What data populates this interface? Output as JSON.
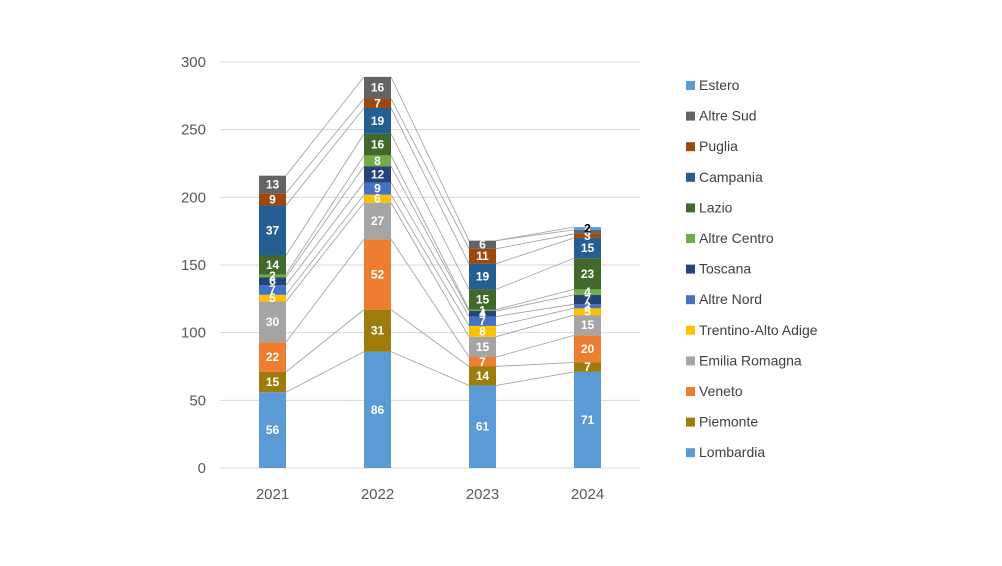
{
  "chart_data": {
    "type": "bar",
    "stacked": true,
    "categories": [
      "2021",
      "2022",
      "2023",
      "2024"
    ],
    "ylim": [
      0,
      300
    ],
    "y_ticks": [
      0,
      50,
      100,
      150,
      200,
      250,
      300
    ],
    "grid": true,
    "legend_position": "right",
    "series_lines": true,
    "series": [
      {
        "name": "Lombardia",
        "color": "#5B9BD5",
        "label_color": "#ffffff",
        "values": [
          56,
          86,
          61,
          71
        ]
      },
      {
        "name": "Piemonte",
        "color": "#9E7C0C",
        "label_color": "#ffffff",
        "values": [
          15,
          31,
          14,
          7
        ]
      },
      {
        "name": "Veneto",
        "color": "#ED7D31",
        "label_color": "#ffffff",
        "values": [
          22,
          52,
          7,
          20
        ]
      },
      {
        "name": "Emilia Romagna",
        "color": "#A5A5A5",
        "label_color": "#ffffff",
        "values": [
          30,
          27,
          15,
          15
        ]
      },
      {
        "name": "Trentino-Alto Adige",
        "color": "#FFC000",
        "label_color": "#ffffff",
        "values": [
          5,
          6,
          8,
          5
        ]
      },
      {
        "name": "Altre Nord",
        "color": "#4472C4",
        "label_color": "#ffffff",
        "values": [
          7,
          9,
          7,
          3
        ]
      },
      {
        "name": "Toscana",
        "color": "#264478",
        "label_color": "#ffffff",
        "values": [
          6,
          12,
          4,
          7
        ]
      },
      {
        "name": "Altre Centro",
        "color": "#70AD47",
        "label_color": "#ffffff",
        "values": [
          2,
          8,
          1,
          4
        ]
      },
      {
        "name": "Lazio",
        "color": "#43682B",
        "label_color": "#ffffff",
        "values": [
          14,
          16,
          15,
          23
        ]
      },
      {
        "name": "Campania",
        "color": "#255E91",
        "label_color": "#ffffff",
        "values": [
          37,
          19,
          19,
          15
        ]
      },
      {
        "name": "Puglia",
        "color": "#9E480E",
        "label_color": "#ffffff",
        "values": [
          9,
          7,
          11,
          3
        ]
      },
      {
        "name": "Altre Sud",
        "color": "#636363",
        "label_color": "#ffffff",
        "values": [
          13,
          16,
          6,
          3
        ]
      },
      {
        "name": "Estero",
        "color": "#5B9BD5",
        "label_color": "#000000",
        "values": [
          0,
          0,
          0,
          2
        ]
      }
    ],
    "legend_order": [
      "Estero",
      "Altre Sud",
      "Puglia",
      "Campania",
      "Lazio",
      "Altre Centro",
      "Toscana",
      "Altre Nord",
      "Trentino-Alto Adige",
      "Emilia Romagna",
      "Veneto",
      "Piemonte",
      "Lombardia"
    ]
  }
}
